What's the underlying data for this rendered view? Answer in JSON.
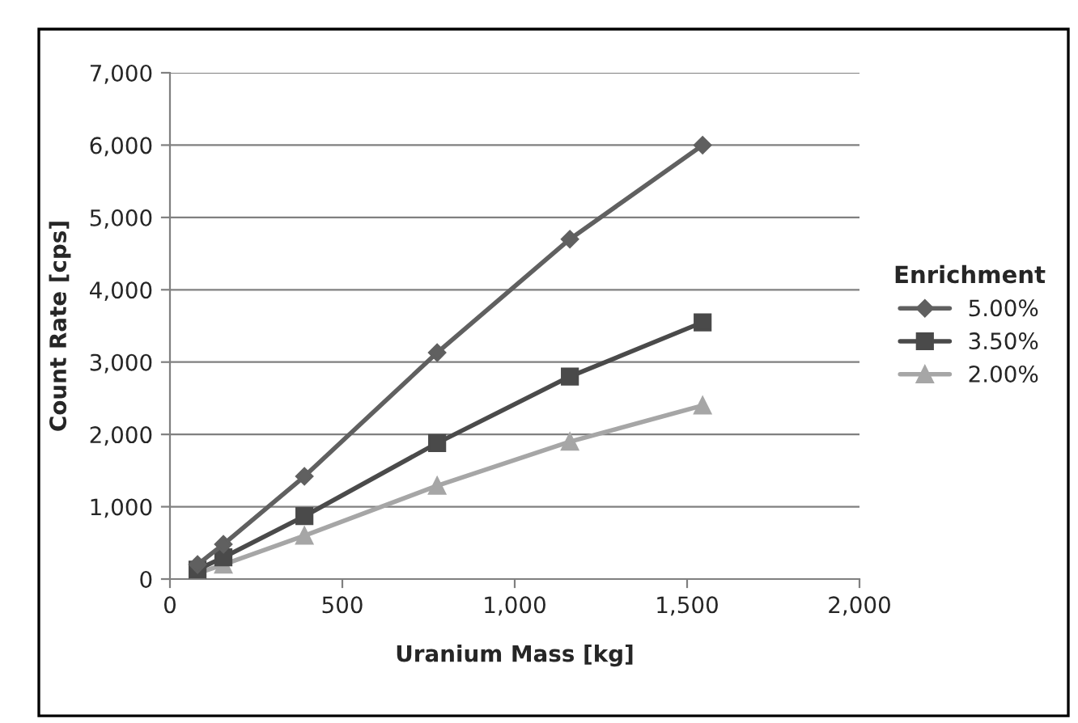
{
  "chart_data": {
    "type": "line",
    "xlabel": "Uranium Mass [kg]",
    "ylabel": "Count Rate [cps]",
    "legend_title": "Enrichment",
    "x": [
      80,
      155,
      390,
      775,
      1160,
      1545
    ],
    "series": [
      {
        "name": "5.00%",
        "color": "#606060",
        "marker": "diamond",
        "values": [
          200,
          480,
          1420,
          3130,
          4700,
          6000
        ]
      },
      {
        "name": "3.50%",
        "color": "#4a4a4a",
        "marker": "square",
        "values": [
          130,
          300,
          870,
          1880,
          2800,
          3550
        ]
      },
      {
        "name": "2.00%",
        "color": "#a6a6a6",
        "marker": "triangle",
        "values": [
          80,
          200,
          600,
          1290,
          1900,
          2400
        ]
      }
    ],
    "xlim": [
      0,
      2000
    ],
    "xticks": [
      {
        "value": 0,
        "label": "0"
      },
      {
        "value": 500,
        "label": "500"
      },
      {
        "value": 1000,
        "label": "1,000"
      },
      {
        "value": 1500,
        "label": "1,500"
      },
      {
        "value": 2000,
        "label": "2,000"
      }
    ],
    "ylim": [
      0,
      7000
    ],
    "yticks": [
      {
        "value": 0,
        "label": "0"
      },
      {
        "value": 1000,
        "label": "1,000"
      },
      {
        "value": 2000,
        "label": "2,000"
      },
      {
        "value": 3000,
        "label": "3,000"
      },
      {
        "value": 4000,
        "label": "4,000"
      },
      {
        "value": 5000,
        "label": "5,000"
      },
      {
        "value": 6000,
        "label": "6,000"
      },
      {
        "value": 7000,
        "label": "7,000"
      }
    ],
    "grid": "y",
    "legend": "right",
    "line_style": "solid"
  }
}
